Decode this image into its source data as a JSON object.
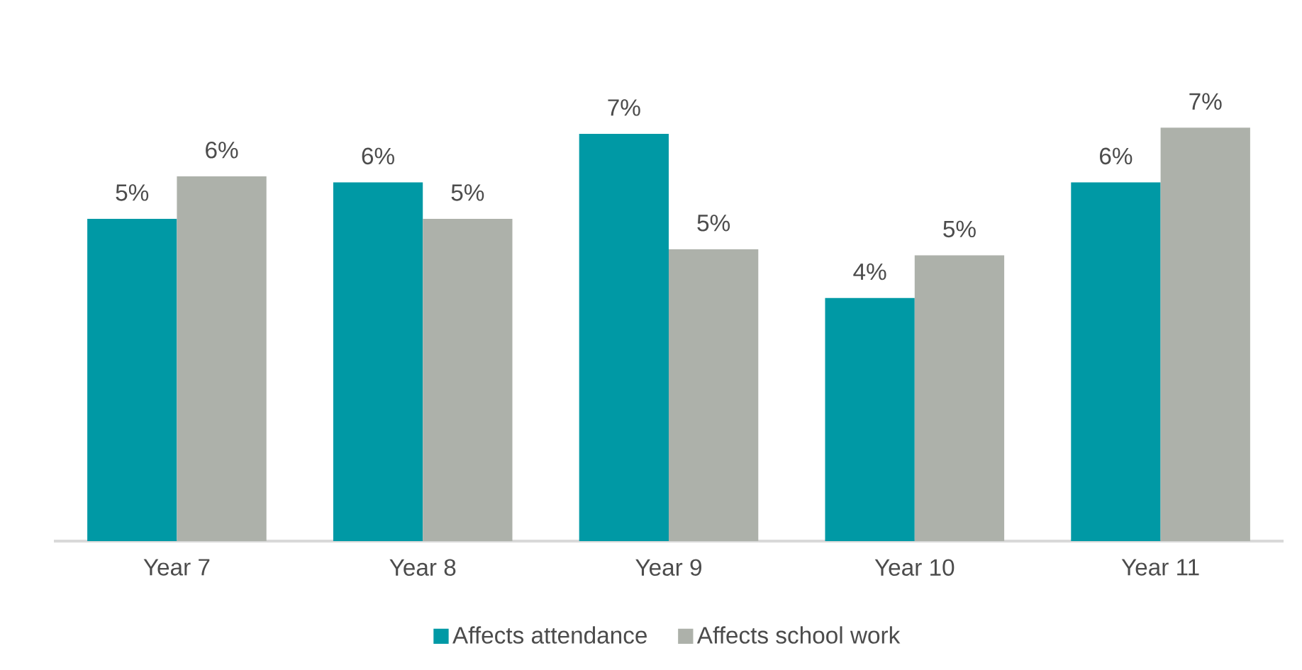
{
  "chart_data": {
    "type": "bar",
    "categories": [
      "Year 7",
      "Year 8",
      "Year 9",
      "Year 10",
      "Year 11"
    ],
    "series": [
      {
        "name": "Affects attendance",
        "color": "#0099a5",
        "values": [
          5.3,
          5.9,
          6.7,
          4.0,
          5.9
        ],
        "value_labels": [
          "5%",
          "6%",
          "7%",
          "4%",
          "6%"
        ]
      },
      {
        "name": "Affects school work",
        "color": "#adb1aa",
        "values": [
          6.0,
          5.3,
          4.8,
          4.7,
          6.8
        ],
        "value_labels": [
          "6%",
          "5%",
          "5%",
          "5%",
          "7%"
        ]
      }
    ],
    "legend": "bottom",
    "grid": false
  }
}
